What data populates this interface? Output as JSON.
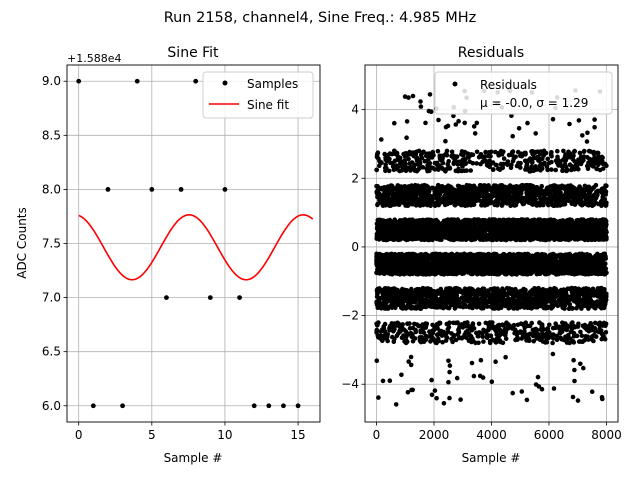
{
  "suptitle": "Run 2158, channel4, Sine Freq.: 4.985 MHz",
  "chart_data": [
    {
      "type": "scatter+line",
      "title": "Sine Fit",
      "xlabel": "Sample #",
      "ylabel": "ADC Counts",
      "offset_text": "+1.588e4",
      "xlim": [
        -0.8,
        16.5
      ],
      "ylim": [
        5.85,
        9.15
      ],
      "xticks": [
        0,
        5,
        10,
        15
      ],
      "yticks": [
        6.0,
        6.5,
        7.0,
        7.5,
        8.0,
        8.5,
        9.0
      ],
      "ytick_labels": [
        "6.0",
        "6.5",
        "7.0",
        "7.5",
        "8.0",
        "8.5",
        "9.0"
      ],
      "grid": true,
      "legend": {
        "position": "upper right",
        "entries": [
          "Samples",
          "Sine fit"
        ]
      },
      "samples": {
        "name": "Samples",
        "x": [
          0,
          1,
          2,
          3,
          4,
          5,
          6,
          7,
          8,
          9,
          10,
          11,
          12,
          13,
          14,
          15
        ],
        "y": [
          9,
          6,
          8,
          6,
          9,
          8,
          7,
          8,
          9,
          7,
          8,
          7,
          6,
          6,
          6,
          6
        ]
      },
      "sine_fit": {
        "name": "Sine fit",
        "color": "#ff0000",
        "x_range": [
          0,
          16
        ],
        "offset": 7.465,
        "amplitude": 0.3,
        "period": 7.8,
        "peak_x": 7.55
      }
    },
    {
      "type": "scatter",
      "title": "Residuals",
      "xlabel": "Sample #",
      "ylabel": "",
      "xlim": [
        -400,
        8400
      ],
      "ylim": [
        -5.1,
        5.3
      ],
      "xticks": [
        0,
        2000,
        4000,
        6000,
        8000
      ],
      "yticks": [
        -4,
        -2,
        0,
        2,
        4
      ],
      "grid": true,
      "legend": {
        "position": "upper right",
        "entries": [
          "Residuals",
          "μ = -0.0, σ = 1.29"
        ]
      },
      "stats": {
        "mu": -0.0,
        "sigma": 1.29
      },
      "n_points": 8000,
      "residual_levels": [
        -2.5,
        -1.5,
        -0.5,
        0.5,
        1.5,
        2.5
      ],
      "level_half_width": 0.3,
      "outlier_range": [
        -4.6,
        4.7
      ]
    }
  ]
}
